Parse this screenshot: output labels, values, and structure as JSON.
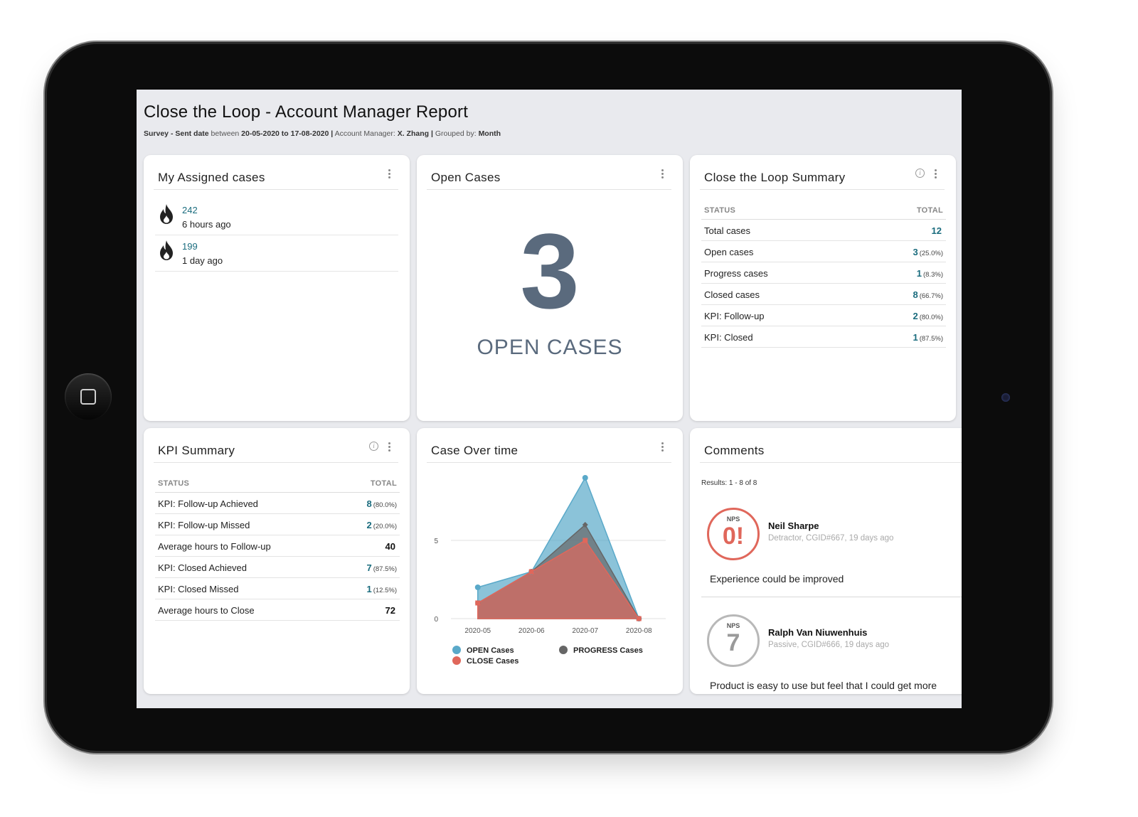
{
  "report": {
    "title": "Close the Loop - Account Manager Report",
    "filter": {
      "survey_label": "Survey - Sent date",
      "between_word": "between",
      "date_range": "20-05-2020 to 17-08-2020",
      "sep1": "|",
      "manager_label": "Account Manager:",
      "manager_value": "X. Zhang",
      "sep2": "|",
      "grouped_label": "Grouped by:",
      "grouped_value": "Month"
    }
  },
  "assigned": {
    "title": "My Assigned cases",
    "items": [
      {
        "id": "242",
        "time": "6 hours ago",
        "icon": "flame-icon"
      },
      {
        "id": "199",
        "time": "1 day ago",
        "icon": "flame-icon"
      }
    ]
  },
  "open_cases": {
    "title": "Open Cases",
    "value": "3",
    "caption": "OPEN CASES",
    "color": "#5a6a7d"
  },
  "loop_summary": {
    "title": "Close the Loop Summary",
    "col_status": "STATUS",
    "col_total": "TOTAL",
    "rows": [
      {
        "label": "Total cases",
        "value": "12",
        "pct": ""
      },
      {
        "label": "Open cases",
        "value": "3",
        "pct": "(25.0%)"
      },
      {
        "label": "Progress cases",
        "value": "1",
        "pct": "(8.3%)"
      },
      {
        "label": "Closed cases",
        "value": "8",
        "pct": "(66.7%)"
      },
      {
        "label": "KPI: Follow-up",
        "value": "2",
        "pct": "(80.0%)"
      },
      {
        "label": "KPI: Closed",
        "value": "1",
        "pct": "(87.5%)"
      }
    ]
  },
  "kpi_summary": {
    "title": "KPI Summary",
    "col_status": "STATUS",
    "col_total": "TOTAL",
    "rows": [
      {
        "label": "KPI: Follow-up Achieved",
        "value": "8",
        "pct": "(80.0%)"
      },
      {
        "label": "KPI: Follow-up Missed",
        "value": "2",
        "pct": "(20.0%)"
      },
      {
        "label": "Average hours to Follow-up",
        "value": "40",
        "pct": ""
      },
      {
        "label": "KPI: Closed Achieved",
        "value": "7",
        "pct": "(87.5%)"
      },
      {
        "label": "KPI: Closed Missed",
        "value": "1",
        "pct": "(12.5%)"
      },
      {
        "label": "Average hours to Close",
        "value": "72",
        "pct": ""
      }
    ]
  },
  "case_over_time": {
    "title": "Case Over time"
  },
  "chart_data": {
    "type": "area",
    "categories": [
      "2020-05",
      "2020-06",
      "2020-07",
      "2020-08"
    ],
    "ylim": [
      0,
      9
    ],
    "yticks": [
      0,
      5
    ],
    "series": [
      {
        "name": "OPEN Cases",
        "values": [
          2,
          3,
          9,
          0
        ],
        "color": "#5aa9c9"
      },
      {
        "name": "PROGRESS Cases",
        "values": [
          1,
          3,
          6,
          0
        ],
        "color": "#666666"
      },
      {
        "name": "CLOSE Cases",
        "values": [
          1,
          3,
          5,
          0
        ],
        "color": "#e0675b"
      }
    ],
    "grid": true,
    "legend_position": "bottom"
  },
  "comments": {
    "title": "Comments",
    "results": "Results: 1 - 8 of 8",
    "items": [
      {
        "nps_label": "NPS",
        "score": "0!",
        "name": "Neil Sharpe",
        "meta": "Detractor, CGID#667, 19 days ago",
        "text": "Experience could be improved",
        "type": "detractor"
      },
      {
        "nps_label": "NPS",
        "score": "7",
        "name": "Ralph Van Niuwenhuis",
        "meta": "Passive, CGID#666, 19 days ago",
        "text": "Product is easy to use but feel that I could get more",
        "type": "passive"
      }
    ]
  }
}
